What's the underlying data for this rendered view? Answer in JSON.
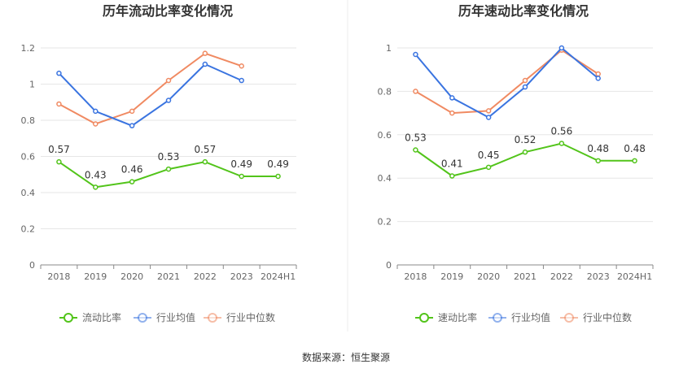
{
  "source_text": "数据来源：恒生聚源",
  "chart_data": [
    {
      "type": "line",
      "title": "历年流动比率变化情况",
      "categories": [
        "2018",
        "2019",
        "2020",
        "2021",
        "2022",
        "2023",
        "2024H1"
      ],
      "ylim": [
        0,
        1.2
      ],
      "yticks": [
        "0",
        "0.2",
        "0.4",
        "0.6",
        "0.8",
        "1",
        "1.2"
      ],
      "grid": true,
      "legend_position": "bottom",
      "series": [
        {
          "name": "流动比率",
          "color": "#52c41a",
          "values": [
            0.57,
            0.43,
            0.46,
            0.53,
            0.57,
            0.49,
            0.49
          ],
          "labels": [
            "0.57",
            "0.43",
            "0.46",
            "0.53",
            "0.57",
            "0.49",
            "0.49"
          ]
        },
        {
          "name": "行业均值",
          "color": "#3a74e0",
          "values": [
            1.06,
            0.85,
            0.77,
            0.91,
            1.11,
            1.02,
            null
          ]
        },
        {
          "name": "行业中位数",
          "color": "#f08a62",
          "values": [
            0.89,
            0.78,
            0.85,
            1.02,
            1.17,
            1.1,
            null
          ]
        }
      ]
    },
    {
      "type": "line",
      "title": "历年速动比率变化情况",
      "categories": [
        "2018",
        "2019",
        "2020",
        "2021",
        "2022",
        "2023",
        "2024H1"
      ],
      "ylim": [
        0,
        1
      ],
      "yticks": [
        "0",
        "0.2",
        "0.4",
        "0.6",
        "0.8",
        "1"
      ],
      "grid": true,
      "legend_position": "bottom",
      "series": [
        {
          "name": "速动比率",
          "color": "#52c41a",
          "values": [
            0.53,
            0.41,
            0.45,
            0.52,
            0.56,
            0.48,
            0.48
          ],
          "labels": [
            "0.53",
            "0.41",
            "0.45",
            "0.52",
            "0.56",
            "0.48",
            "0.48"
          ]
        },
        {
          "name": "行业均值",
          "color": "#3a74e0",
          "values": [
            0.97,
            0.77,
            0.68,
            0.82,
            1.0,
            0.86,
            null
          ]
        },
        {
          "name": "行业中位数",
          "color": "#f08a62",
          "values": [
            0.8,
            0.7,
            0.71,
            0.85,
            0.99,
            0.88,
            null
          ]
        }
      ]
    }
  ]
}
